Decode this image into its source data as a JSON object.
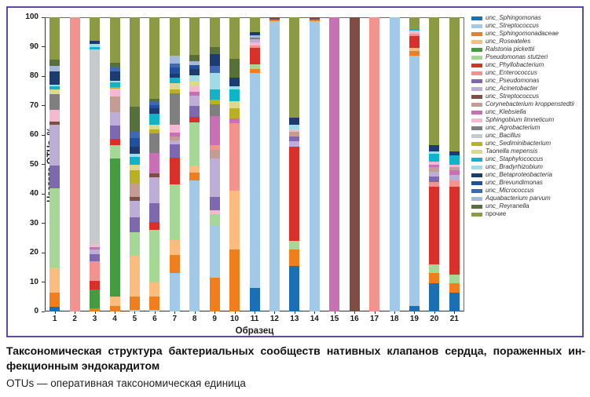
{
  "figure": {
    "border_color": "#5b4a9d",
    "caption_line1": "Таксономическая структура бактериальных сообществ нативных клапанов сердца, пораженных ин-",
    "caption_line2": "фекционным эндокардитом",
    "note": "OTUs — оперативная таксономическая единица"
  },
  "chart_data": {
    "type": "bar",
    "stacked": true,
    "title": "",
    "xlabel": "Образец",
    "ylabel": "Частота OTUs, %",
    "ylim": [
      0,
      100
    ],
    "yticks": [
      0,
      10,
      20,
      30,
      40,
      50,
      60,
      70,
      80,
      90,
      100
    ],
    "grid": false,
    "legend_position": "right-outside",
    "categories": [
      "1",
      "2",
      "3",
      "4",
      "5",
      "6",
      "7",
      "8",
      "9",
      "10",
      "11",
      "12",
      "13",
      "14",
      "15",
      "16",
      "17",
      "18",
      "19",
      "20",
      "21"
    ],
    "taxa": [
      {
        "name": "unc_Sphingomonas",
        "color": "#1b6fb5",
        "italic": true
      },
      {
        "name": "unc_Streptococcus",
        "color": "#a3c9e9",
        "italic": true
      },
      {
        "name": "unc_Sphingomonadaceae",
        "color": "#f07e1d",
        "italic": true
      },
      {
        "name": "unc_Roseateles",
        "color": "#fcbc7d",
        "italic": true
      },
      {
        "name": "Ralstonia pickettii",
        "color": "#459b3f",
        "italic": true
      },
      {
        "name": "Pseudomonas stutzeri",
        "color": "#a5d795",
        "italic": true
      },
      {
        "name": "unc_Phyllobacterium",
        "color": "#d9302a",
        "italic": true
      },
      {
        "name": "unc_Enterococcus",
        "color": "#f4928e",
        "italic": true
      },
      {
        "name": "unc_Pseudomonas",
        "color": "#7e68af",
        "italic": true
      },
      {
        "name": "unc_Acinetobacter",
        "color": "#bcaed6",
        "italic": true
      },
      {
        "name": "unc_Streptococcus",
        "color": "#7e4d44",
        "italic": true
      },
      {
        "name": "Corynebacterium kroppenstedtii",
        "color": "#c49c94",
        "italic": true
      },
      {
        "name": "unc_Klebsiella",
        "color": "#c970b5",
        "italic": true
      },
      {
        "name": "Sphingobium limneticum",
        "color": "#f5b8d1",
        "italic": true
      },
      {
        "name": "unc_Agrobacterium",
        "color": "#7f7f7f",
        "italic": true
      },
      {
        "name": "unc_Bacillus",
        "color": "#c6cacd",
        "italic": true
      },
      {
        "name": "unc_Sediminibacterium",
        "color": "#b9b121",
        "italic": true
      },
      {
        "name": "Taonella mepensis",
        "color": "#dbd98c",
        "italic": true
      },
      {
        "name": "unc_Staphylococcus",
        "color": "#0fb4c8",
        "italic": true
      },
      {
        "name": "unc_Bradyrhizobium",
        "color": "#a0dce6",
        "italic": true
      },
      {
        "name": "unc_Betaproteobacteria",
        "color": "#1c3b71",
        "italic": true
      },
      {
        "name": "unc_Brevundimonas",
        "color": "#21509f",
        "italic": true
      },
      {
        "name": "unc_Micrococcus",
        "color": "#3e68b3",
        "italic": true
      },
      {
        "name": "Aquabacterium parvum",
        "color": "#a4b8da",
        "italic": true
      },
      {
        "name": "unc_Reyranella",
        "color": "#57703a",
        "italic": true
      },
      {
        "name": "прочие",
        "color": "#8d9a44",
        "italic": false
      }
    ],
    "bars": [
      {
        "sample": "1",
        "segments": [
          [
            0,
            1.5
          ],
          [
            2,
            5
          ],
          [
            3,
            8.5
          ],
          [
            5,
            27
          ],
          [
            8,
            7.5
          ],
          [
            9,
            14
          ],
          [
            10,
            1
          ],
          [
            13,
            4
          ],
          [
            14,
            5.5
          ],
          [
            17,
            1.5
          ],
          [
            18,
            1
          ],
          [
            19,
            0.7
          ],
          [
            20,
            4.3
          ],
          [
            23,
            2
          ],
          [
            24,
            2
          ],
          [
            25,
            14.5
          ]
        ]
      },
      {
        "sample": "2",
        "segments": [
          [
            7,
            100
          ]
        ]
      },
      {
        "sample": "3",
        "segments": [
          [
            2,
            1
          ],
          [
            4,
            6.5
          ],
          [
            6,
            3
          ],
          [
            7,
            6.5
          ],
          [
            8,
            2.5
          ],
          [
            9,
            1.5
          ],
          [
            12,
            1
          ],
          [
            13,
            1
          ],
          [
            15,
            66
          ],
          [
            18,
            1
          ],
          [
            19,
            1
          ],
          [
            20,
            1
          ],
          [
            25,
            8
          ]
        ]
      },
      {
        "sample": "4",
        "segments": [
          [
            2,
            2
          ],
          [
            3,
            3
          ],
          [
            4,
            47
          ],
          [
            5,
            4.5
          ],
          [
            6,
            2.3
          ],
          [
            8,
            4.4
          ],
          [
            9,
            4.5
          ],
          [
            11,
            5.3
          ],
          [
            13,
            2.7
          ],
          [
            16,
            0.5
          ],
          [
            18,
            1.8
          ],
          [
            19,
            0.5
          ],
          [
            20,
            3
          ],
          [
            22,
            1.7
          ],
          [
            24,
            1.3
          ],
          [
            25,
            15.5
          ]
        ]
      },
      {
        "sample": "5",
        "segments": [
          [
            1,
            0.5
          ],
          [
            2,
            4.5
          ],
          [
            3,
            14
          ],
          [
            5,
            8
          ],
          [
            8,
            5
          ],
          [
            9,
            5.5
          ],
          [
            10,
            1.5
          ],
          [
            11,
            4.5
          ],
          [
            16,
            4.5
          ],
          [
            17,
            2
          ],
          [
            18,
            2.5
          ],
          [
            19,
            1
          ],
          [
            20,
            2.5
          ],
          [
            21,
            3
          ],
          [
            22,
            2
          ],
          [
            24,
            8.5
          ],
          [
            25,
            30.5
          ]
        ]
      },
      {
        "sample": "6",
        "segments": [
          [
            1,
            0.5
          ],
          [
            2,
            4.5
          ],
          [
            3,
            4.8
          ],
          [
            5,
            18
          ],
          [
            6,
            2.7
          ],
          [
            8,
            6.2
          ],
          [
            9,
            9
          ],
          [
            10,
            1.3
          ],
          [
            12,
            7
          ],
          [
            14,
            6.5
          ],
          [
            16,
            1.3
          ],
          [
            17,
            1.8
          ],
          [
            18,
            3.5
          ],
          [
            20,
            2
          ],
          [
            21,
            1
          ],
          [
            22,
            1.3
          ],
          [
            24,
            1
          ],
          [
            25,
            27.6
          ]
        ]
      },
      {
        "sample": "7",
        "segments": [
          [
            1,
            13
          ],
          [
            2,
            6.2
          ],
          [
            3,
            5.4
          ],
          [
            5,
            18.7
          ],
          [
            6,
            9
          ],
          [
            8,
            4.5
          ],
          [
            9,
            1.3
          ],
          [
            11,
            1.3
          ],
          [
            12,
            1.3
          ],
          [
            13,
            2.7
          ],
          [
            14,
            10.7
          ],
          [
            16,
            1.3
          ],
          [
            17,
            2.3
          ],
          [
            18,
            1.8
          ],
          [
            20,
            1.3
          ],
          [
            21,
            2.2
          ],
          [
            22,
            1.3
          ],
          [
            23,
            2.7
          ],
          [
            25,
            13
          ]
        ]
      },
      {
        "sample": "8",
        "segments": [
          [
            1,
            44.6
          ],
          [
            2,
            2.7
          ],
          [
            3,
            2.2
          ],
          [
            5,
            14.7
          ],
          [
            6,
            2
          ],
          [
            8,
            3.6
          ],
          [
            9,
            3.6
          ],
          [
            12,
            1.3
          ],
          [
            13,
            1.8
          ],
          [
            17,
            2
          ],
          [
            19,
            1.8
          ],
          [
            20,
            2
          ],
          [
            21,
            1.4
          ],
          [
            23,
            1.3
          ],
          [
            24,
            2.2
          ],
          [
            25,
            12.8
          ]
        ]
      },
      {
        "sample": "9",
        "segments": [
          [
            2,
            11.5
          ],
          [
            1,
            17.5
          ],
          [
            5,
            4
          ],
          [
            13,
            1.5
          ],
          [
            8,
            4.5
          ],
          [
            9,
            13
          ],
          [
            11,
            3
          ],
          [
            7,
            1.5
          ],
          [
            12,
            10
          ],
          [
            14,
            4
          ],
          [
            16,
            1.5
          ],
          [
            18,
            3.5
          ],
          [
            19,
            5.5
          ],
          [
            22,
            2.5
          ],
          [
            20,
            4
          ],
          [
            24,
            2.5
          ],
          [
            25,
            10
          ]
        ]
      },
      {
        "sample": "10",
        "segments": [
          [
            2,
            21
          ],
          [
            3,
            20
          ],
          [
            7,
            23
          ],
          [
            12,
            1.5
          ],
          [
            16,
            3.5
          ],
          [
            17,
            2.5
          ],
          [
            18,
            4
          ],
          [
            19,
            1
          ],
          [
            20,
            3
          ],
          [
            24,
            6.5
          ],
          [
            25,
            14
          ]
        ]
      },
      {
        "sample": "11",
        "segments": [
          [
            0,
            8
          ],
          [
            1,
            73
          ],
          [
            2,
            1.5
          ],
          [
            5,
            1.5
          ],
          [
            6,
            5.5
          ],
          [
            7,
            1
          ],
          [
            13,
            1
          ],
          [
            9,
            1
          ],
          [
            14,
            0.5
          ],
          [
            23,
            1
          ],
          [
            20,
            1
          ],
          [
            25,
            5
          ]
        ]
      },
      {
        "sample": "12",
        "segments": [
          [
            1,
            98.7
          ],
          [
            2,
            0.6
          ],
          [
            10,
            0.7
          ]
        ]
      },
      {
        "sample": "13",
        "segments": [
          [
            0,
            15.5
          ],
          [
            2,
            5.5
          ],
          [
            5,
            3
          ],
          [
            6,
            32
          ],
          [
            9,
            2
          ],
          [
            8,
            1.5
          ],
          [
            11,
            1.5
          ],
          [
            13,
            1
          ],
          [
            19,
            1.5
          ],
          [
            20,
            2.5
          ],
          [
            25,
            34
          ]
        ]
      },
      {
        "sample": "14",
        "segments": [
          [
            1,
            98.7
          ],
          [
            2,
            0.6
          ],
          [
            10,
            0.7
          ]
        ]
      },
      {
        "sample": "15",
        "segments": [
          [
            12,
            100
          ]
        ]
      },
      {
        "sample": "16",
        "segments": [
          [
            10,
            100
          ]
        ]
      },
      {
        "sample": "17",
        "segments": [
          [
            7,
            100
          ]
        ]
      },
      {
        "sample": "18",
        "segments": [
          [
            1,
            100
          ]
        ]
      },
      {
        "sample": "19",
        "segments": [
          [
            0,
            2
          ],
          [
            1,
            85
          ],
          [
            2,
            1.5
          ],
          [
            3,
            1
          ],
          [
            6,
            4
          ],
          [
            7,
            1
          ],
          [
            13,
            1
          ],
          [
            18,
            0.5
          ],
          [
            25,
            4
          ]
        ]
      },
      {
        "sample": "20",
        "segments": [
          [
            0,
            9.5
          ],
          [
            2,
            3.5
          ],
          [
            5,
            3
          ],
          [
            6,
            26.5
          ],
          [
            7,
            1.5
          ],
          [
            8,
            2
          ],
          [
            9,
            1.5
          ],
          [
            11,
            1.5
          ],
          [
            12,
            1
          ],
          [
            13,
            1
          ],
          [
            18,
            2.5
          ],
          [
            19,
            1
          ],
          [
            20,
            2
          ],
          [
            25,
            43.5
          ]
        ]
      },
      {
        "sample": "21",
        "segments": [
          [
            0,
            6.5
          ],
          [
            2,
            3
          ],
          [
            5,
            3
          ],
          [
            6,
            30
          ],
          [
            7,
            2
          ],
          [
            9,
            2
          ],
          [
            12,
            1.5
          ],
          [
            11,
            1
          ],
          [
            13,
            1
          ],
          [
            18,
            3
          ],
          [
            20,
            1.5
          ],
          [
            25,
            45.5
          ]
        ]
      }
    ]
  }
}
